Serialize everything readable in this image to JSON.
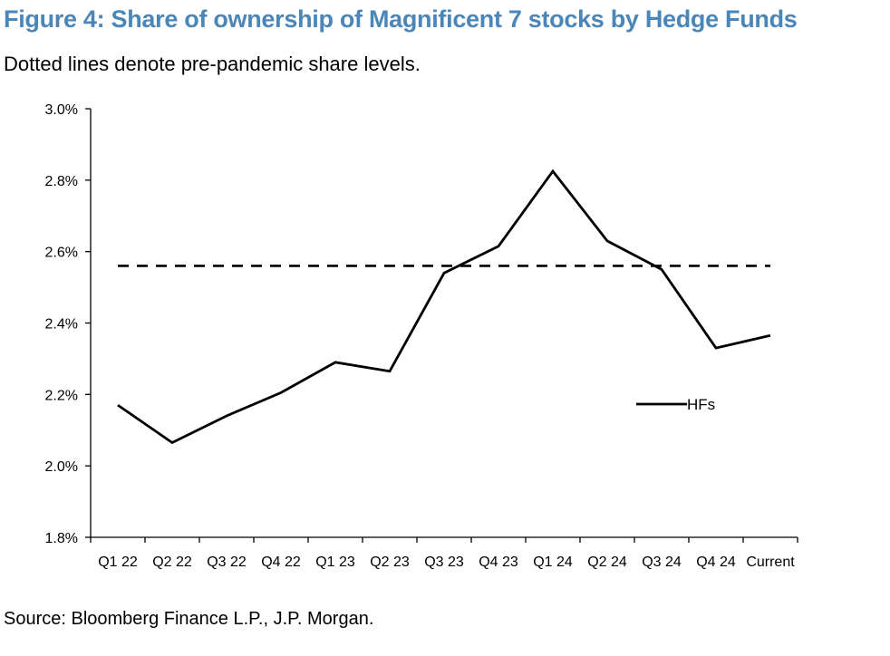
{
  "title": "Figure 4: Share of ownership of Magnificent 7 stocks by Hedge Funds",
  "subtitle": "Dotted lines denote pre-pandemic share levels.",
  "source": "Source: Bloomberg Finance L.P., J.P. Morgan.",
  "chart_data": {
    "type": "line",
    "categories": [
      "Q1 22",
      "Q2 22",
      "Q3 22",
      "Q4 22",
      "Q1 23",
      "Q2 23",
      "Q3 23",
      "Q4 23",
      "Q1 24",
      "Q2 24",
      "Q3 24",
      "Q4 24",
      "Current"
    ],
    "series": [
      {
        "name": "HFs",
        "color": "#000000",
        "line_style": "solid",
        "values": [
          2.17,
          2.065,
          2.14,
          2.205,
          2.29,
          2.265,
          2.54,
          2.615,
          2.825,
          2.63,
          2.55,
          2.33,
          2.365
        ]
      }
    ],
    "reference_line": {
      "value": 2.56,
      "from_category": "Q1 22",
      "to_category": "Current",
      "color": "#000000",
      "line_style": "dashed"
    },
    "y_ticks": [
      1.8,
      2.0,
      2.2,
      2.4,
      2.6,
      2.8,
      3.0
    ],
    "y_tick_labels": [
      "1.8%",
      "2.0%",
      "2.2%",
      "2.4%",
      "2.6%",
      "2.8%",
      "3.0%"
    ],
    "ylim": [
      1.8,
      3.0
    ],
    "xlabel": "",
    "ylabel": "",
    "grid": false,
    "legend_position": "right-middle"
  }
}
